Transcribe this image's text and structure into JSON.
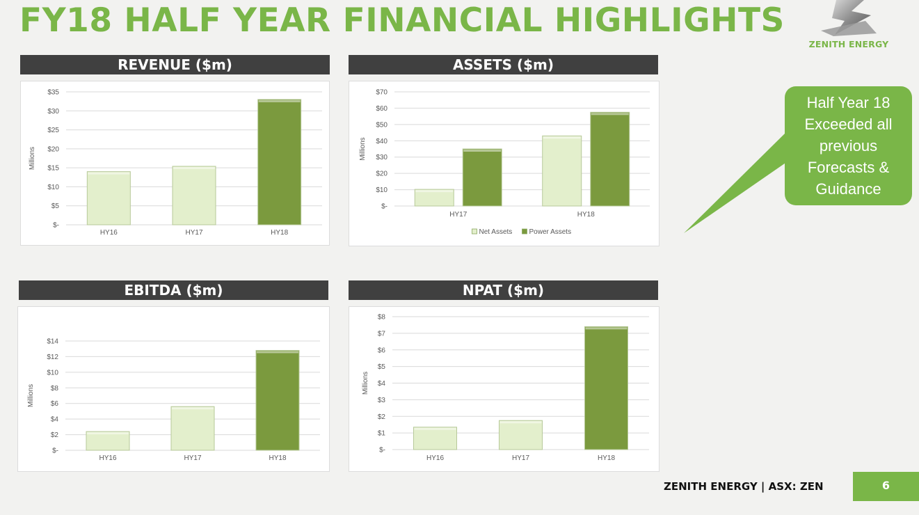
{
  "page": {
    "title": "FY18 HALF YEAR FINANCIAL HIGHLIGHTS",
    "brand": "ZENITH ENERGY",
    "callout": {
      "lines": [
        "Half Year 18",
        "Exceeded all",
        "previous",
        "Forecasts &",
        "Guidance"
      ]
    },
    "footer": "ZENITH ENERGY | ASX: ZEN",
    "page_number": "6"
  },
  "colors": {
    "accent": "#7ab648",
    "header_bg": "#404040",
    "light_bar": "#e3efcc",
    "dark_bar": "#7b9a3e"
  },
  "icons": {
    "logo": "zenith-z-logo"
  },
  "panels": {
    "revenue": {
      "header": "REVENUE ($m)"
    },
    "assets": {
      "header": "ASSETS ($m)"
    },
    "ebitda": {
      "header": "EBITDA ($m)"
    },
    "npat": {
      "header": "NPAT ($m)"
    }
  },
  "chart_data": [
    {
      "id": "revenue",
      "type": "bar",
      "title": "REVENUE ($m)",
      "ylabel": "Millions",
      "categories": [
        "HY16",
        "HY17",
        "HY18"
      ],
      "values": [
        14.0,
        15.4,
        33.0
      ],
      "bar_colors": [
        "#e3efcc",
        "#e3efcc",
        "#7b9a3e"
      ],
      "ylim": [
        0,
        35
      ],
      "yticks": [
        0,
        5,
        10,
        15,
        20,
        25,
        30,
        35
      ],
      "ytick_labels": [
        "$-",
        "$5",
        "$10",
        "$15",
        "$20",
        "$25",
        "$30",
        "$35"
      ],
      "grid": true,
      "legend": []
    },
    {
      "id": "assets",
      "type": "bar",
      "title": "ASSETS ($m)",
      "ylabel": "Millions",
      "categories": [
        "HY17",
        "HY18"
      ],
      "series": [
        {
          "name": "Net Assets",
          "values": [
            10.2,
            43.0
          ],
          "color": "#e3efcc"
        },
        {
          "name": "Power Assets",
          "values": [
            35.0,
            57.5
          ],
          "color": "#7b9a3e"
        }
      ],
      "ylim": [
        0,
        70
      ],
      "yticks": [
        0,
        10,
        20,
        30,
        40,
        50,
        60,
        70
      ],
      "ytick_labels": [
        "$-",
        "$10",
        "$20",
        "$30",
        "$40",
        "$50",
        "$60",
        "$70"
      ],
      "grid": true,
      "legend_position": "bottom"
    },
    {
      "id": "ebitda",
      "type": "bar",
      "title": "EBITDA ($m)",
      "ylabel": "Millions",
      "categories": [
        "HY16",
        "HY17",
        "HY18"
      ],
      "values": [
        2.4,
        5.6,
        12.8
      ],
      "bar_colors": [
        "#e3efcc",
        "#e3efcc",
        "#7b9a3e"
      ],
      "ylim": [
        0,
        14
      ],
      "yticks": [
        0,
        2,
        4,
        6,
        8,
        10,
        12,
        14
      ],
      "ytick_labels": [
        "$-",
        "$2",
        "$4",
        "$6",
        "$8",
        "$10",
        "$12",
        "$14"
      ],
      "grid": true,
      "legend": []
    },
    {
      "id": "npat",
      "type": "bar",
      "title": "NPAT ($m)",
      "ylabel": "Millions",
      "categories": [
        "HY16",
        "HY17",
        "HY18"
      ],
      "values": [
        1.35,
        1.75,
        7.4
      ],
      "bar_colors": [
        "#e3efcc",
        "#e3efcc",
        "#7b9a3e"
      ],
      "ylim": [
        0,
        8
      ],
      "yticks": [
        0,
        1,
        2,
        3,
        4,
        5,
        6,
        7,
        8
      ],
      "ytick_labels": [
        "$-",
        "$1",
        "$2",
        "$3",
        "$4",
        "$5",
        "$6",
        "$7",
        "$8"
      ],
      "grid": true,
      "legend": []
    }
  ]
}
